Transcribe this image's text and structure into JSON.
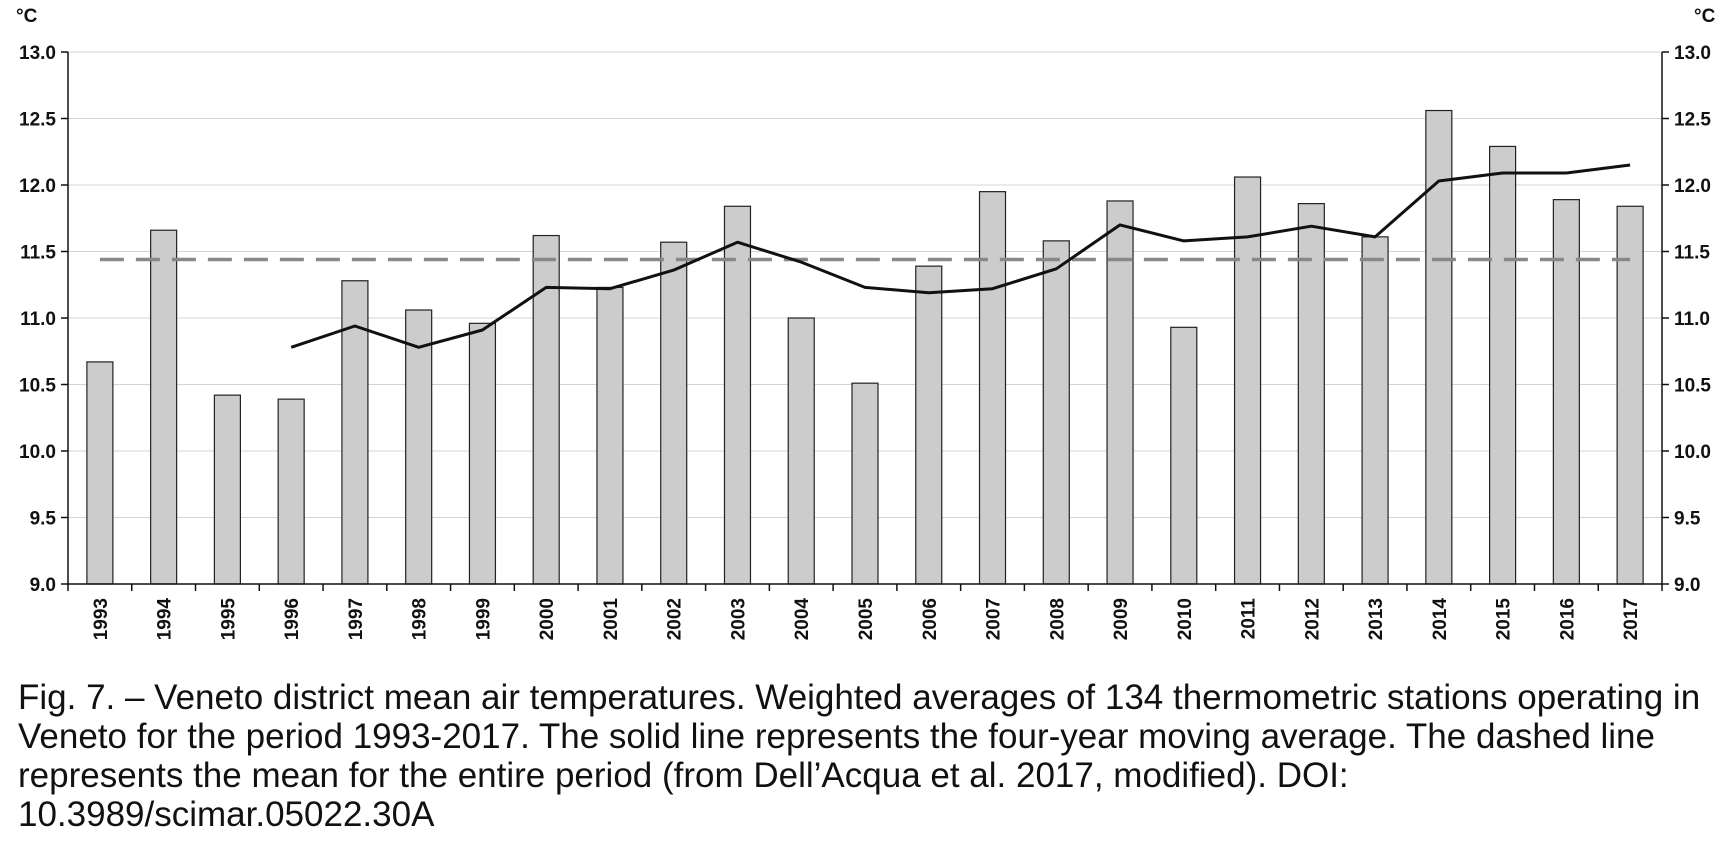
{
  "caption": "Fig. 7. – Veneto district mean air temperatures. Weighted averages of 134 thermometric stations operating in Veneto for the period 1993-2017. The solid line represents the four-year moving average. The dashed line represents the mean for the entire period (from Dell’Acqua et al. 2017, modified). DOI: 10.3989/scimar.05022.30A",
  "chart_data": {
    "type": "bar",
    "title": "",
    "xlabel": "",
    "ylabel_left": "°C",
    "ylabel_right": "°C",
    "ylim": [
      9.0,
      13.0
    ],
    "yticks": [
      "9.0",
      "9.5",
      "10.0",
      "10.5",
      "11.0",
      "11.5",
      "12.0",
      "12.5",
      "13.0"
    ],
    "grid": true,
    "legend": "none",
    "categories": [
      "1993",
      "1994",
      "1995",
      "1996",
      "1997",
      "1998",
      "1999",
      "2000",
      "2001",
      "2002",
      "2003",
      "2004",
      "2005",
      "2006",
      "2007",
      "2008",
      "2009",
      "2010",
      "2011",
      "2012",
      "2013",
      "2014",
      "2015",
      "2016",
      "2017"
    ],
    "series": [
      {
        "kind": "bar",
        "values": [
          10.67,
          11.66,
          10.42,
          10.39,
          11.28,
          11.06,
          10.96,
          11.62,
          11.23,
          11.57,
          11.84,
          11.0,
          10.51,
          11.39,
          11.95,
          11.58,
          11.88,
          10.93,
          12.06,
          11.86,
          11.61,
          12.56,
          12.29,
          11.89,
          11.84
        ],
        "color": "#cccccc"
      },
      {
        "kind": "line",
        "style": "solid",
        "values": [
          null,
          null,
          null,
          10.78,
          10.94,
          10.78,
          10.91,
          11.23,
          11.22,
          11.36,
          11.57,
          11.42,
          11.23,
          11.19,
          11.22,
          11.37,
          11.7,
          11.58,
          11.61,
          11.69,
          11.61,
          12.03,
          12.09,
          12.09,
          12.15
        ],
        "color": "#111111"
      },
      {
        "kind": "line",
        "style": "dashed",
        "value": 11.44,
        "color": "#888888"
      }
    ]
  }
}
